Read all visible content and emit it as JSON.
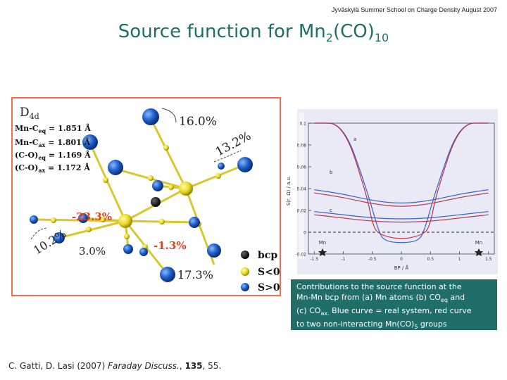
{
  "header": {
    "line": "Jyväskylä Summer School on Charge Density August 2007"
  },
  "title": {
    "main": "Source function for Mn",
    "sub1": "2",
    "mid": "(CO)",
    "sub2": "10"
  },
  "molecule": {
    "symmetry_label": "D",
    "symmetry_sub": "4d",
    "bonds": [
      {
        "label": "Mn-C",
        "sub": "eq",
        "value": " = 1.851 Å"
      },
      {
        "label": "Mn-C",
        "sub": "ax",
        "value": " = 1.801 Å"
      },
      {
        "label": "(C-O)",
        "sub": "eq",
        "value": " = 1.169 Å"
      },
      {
        "label": "(C-O)",
        "sub": "ax",
        "value": " = 1.172 Å"
      }
    ],
    "percentages": {
      "p1": "16.0%",
      "p2": "13.2%",
      "p3": "-23.3%",
      "p4": "10.2%",
      "p5": "3.0%",
      "p6": "-1.3%",
      "p7": "17.3%"
    },
    "legend": [
      {
        "label": "bcp",
        "color": "#111111"
      },
      {
        "label": "S<0",
        "color": "#f0e020"
      },
      {
        "label": "S>0",
        "color": "#2d6fd6"
      }
    ],
    "colors": {
      "atom": "#1e5fc8",
      "mn": "#e8d820",
      "border": "#f07050"
    }
  },
  "plot": {
    "ylabel": "S(r, Ω) / a.u.",
    "xlabel": "BP / Å",
    "xticks": [
      "-1.5",
      "-1",
      "-0.5",
      "0",
      "0.5",
      "1",
      "1.5"
    ],
    "yticks": [
      "0.1",
      "0.08",
      "0.06",
      "0.04",
      "0.02",
      "0",
      "-0.02"
    ],
    "labels": {
      "a": "a",
      "b": "b",
      "c": "c",
      "mn_left": "Mn",
      "mn_right": "Mn"
    },
    "colors": {
      "real": "#3a5fcf",
      "noninteracting": "#c0304a"
    }
  },
  "chart_data": {
    "type": "line",
    "xlabel": "BP / Å",
    "ylabel": "S(r, Ω) / a.u.",
    "xlim": [
      -1.6,
      1.6
    ],
    "ylim": [
      -0.02,
      0.1
    ],
    "series": [
      {
        "x": [
          -1.5,
          -1.0,
          -0.6,
          -0.4,
          -0.3,
          0,
          0.3,
          0.4,
          0.6,
          1.0,
          1.5
        ],
        "y": [
          0.1,
          0.1,
          0.04,
          0.002,
          -0.008,
          -0.01,
          -0.008,
          0.002,
          0.04,
          0.1,
          0.1
        ]
      },
      {
        "x": [
          -1.5,
          -1.0,
          -0.6,
          -0.5,
          -0.4,
          0,
          0.4,
          0.5,
          0.6,
          1.0,
          1.5
        ],
        "y": [
          0.1,
          0.1,
          0.035,
          0.008,
          -0.002,
          -0.007,
          -0.002,
          0.008,
          0.035,
          0.1,
          0.1
        ]
      },
      {
        "x": [
          -1.5,
          -1.0,
          -0.5,
          0,
          0.5,
          1.0,
          1.5
        ],
        "y": [
          0.039,
          0.035,
          0.029,
          0.026,
          0.029,
          0.035,
          0.039
        ]
      },
      {
        "x": [
          -1.5,
          -1.0,
          -0.5,
          0,
          0.5,
          1.0,
          1.5
        ],
        "y": [
          0.036,
          0.032,
          0.026,
          0.023,
          0.026,
          0.032,
          0.036
        ]
      },
      {
        "x": [
          -1.5,
          -1.0,
          -0.5,
          0,
          0.5,
          1.0,
          1.5
        ],
        "y": [
          0.019,
          0.016,
          0.013,
          0.012,
          0.013,
          0.016,
          0.019
        ]
      },
      {
        "x": [
          -1.5,
          -1.0,
          -0.5,
          0,
          0.5,
          1.0,
          1.5
        ],
        "y": [
          0.016,
          0.013,
          0.01,
          0.009,
          0.01,
          0.013,
          0.016
        ]
      }
    ]
  },
  "caption": {
    "l1": "Contributions to the source function at the",
    "l2a": "Mn-Mn bcp from (a) Mn atoms (b) CO",
    "l2sub": "eq",
    "l2b": " and",
    "l3a": "(c) CO",
    "l3sub": "ax.",
    "l3b": " Blue curve = real system, red curve",
    "l4a": "to two non-interacting Mn(CO)",
    "l4sub": "5",
    "l4b": " groups"
  },
  "citation": {
    "authors": "C. Gatti, D. Lasi (2007) ",
    "journal": "Faraday Discuss.",
    "sep": ", ",
    "volume": "135",
    "pages": ", 55."
  }
}
